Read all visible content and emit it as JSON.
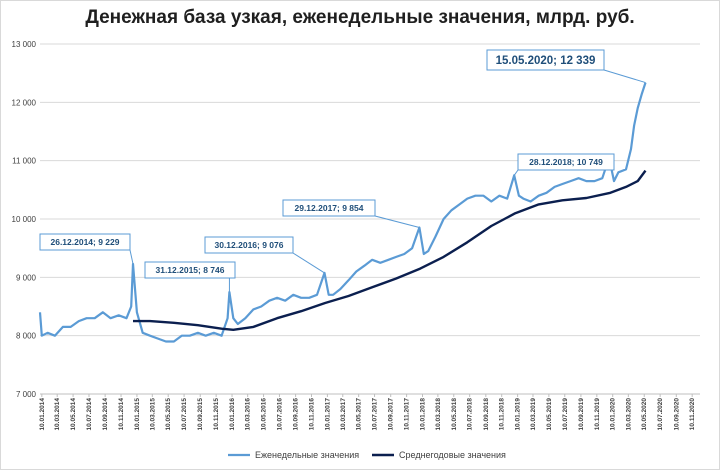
{
  "chart_data": {
    "type": "line",
    "title": "Денежная база узкая, еженедельные значения, млрд. руб.",
    "xlabel": "",
    "ylabel": "",
    "ylim": [
      7000,
      13000
    ],
    "y_ticks": [
      "7 000",
      "8 000",
      "9 000",
      "10 000",
      "11 000",
      "12 000",
      "13 000"
    ],
    "x_ticks": [
      "10.01.2014",
      "10.03.2014",
      "10.05.2014",
      "10.07.2014",
      "10.09.2014",
      "10.11.2014",
      "10.01.2015",
      "10.03.2015",
      "10.05.2015",
      "10.07.2015",
      "10.09.2015",
      "10.11.2015",
      "10.01.2016",
      "10.03.2016",
      "10.05.2016",
      "10.07.2016",
      "10.09.2016",
      "10.11.2016",
      "10.01.2017",
      "10.03.2017",
      "10.05.2017",
      "10.07.2017",
      "10.09.2017",
      "10.11.2017",
      "10.01.2018",
      "10.03.2018",
      "10.05.2018",
      "10.07.2018",
      "10.09.2018",
      "10.11.2018",
      "10.01.2019",
      "10.03.2019",
      "10.05.2019",
      "10.07.2019",
      "10.09.2019",
      "10.11.2019",
      "10.01.2020",
      "10.03.2020",
      "10.05.2020",
      "10.07.2020",
      "10.09.2020",
      "10.11.2020"
    ],
    "grid": true,
    "legend_position": "bottom",
    "series": [
      {
        "name": "Еженедельные значения",
        "color": "#5b9bd5",
        "x": [
          "2014-01-03",
          "2014-01-10",
          "2014-02-01",
          "2014-03-01",
          "2014-04-01",
          "2014-05-01",
          "2014-06-01",
          "2014-07-01",
          "2014-08-01",
          "2014-09-01",
          "2014-10-01",
          "2014-11-01",
          "2014-12-01",
          "2014-12-19",
          "2014-12-26",
          "2015-01-10",
          "2015-02-01",
          "2015-03-01",
          "2015-04-01",
          "2015-05-01",
          "2015-06-01",
          "2015-07-01",
          "2015-08-01",
          "2015-09-01",
          "2015-10-01",
          "2015-11-01",
          "2015-12-01",
          "2015-12-24",
          "2015-12-31",
          "2016-01-15",
          "2016-02-01",
          "2016-03-01",
          "2016-04-01",
          "2016-05-01",
          "2016-06-01",
          "2016-07-01",
          "2016-08-01",
          "2016-09-01",
          "2016-10-01",
          "2016-11-01",
          "2016-12-01",
          "2016-12-30",
          "2017-01-15",
          "2017-02-01",
          "2017-03-01",
          "2017-04-01",
          "2017-05-01",
          "2017-06-01",
          "2017-07-01",
          "2017-08-01",
          "2017-09-01",
          "2017-10-01",
          "2017-11-01",
          "2017-12-01",
          "2017-12-29",
          "2018-01-15",
          "2018-02-01",
          "2018-03-01",
          "2018-04-01",
          "2018-05-01",
          "2018-06-01",
          "2018-07-01",
          "2018-08-01",
          "2018-09-01",
          "2018-10-01",
          "2018-11-01",
          "2018-12-01",
          "2018-12-28",
          "2019-01-15",
          "2019-02-01",
          "2019-03-01",
          "2019-04-01",
          "2019-05-01",
          "2019-06-01",
          "2019-07-01",
          "2019-08-01",
          "2019-09-01",
          "2019-10-01",
          "2019-11-01",
          "2019-12-01",
          "2019-12-27",
          "2020-01-15",
          "2020-02-01",
          "2020-03-01",
          "2020-03-20",
          "2020-04-01",
          "2020-04-15",
          "2020-05-01",
          "2020-05-15"
        ],
        "y": [
          8400,
          8000,
          8050,
          8000,
          8150,
          8150,
          8250,
          8300,
          8300,
          8400,
          8300,
          8350,
          8300,
          8500,
          9229,
          8400,
          8050,
          8000,
          7950,
          7900,
          7900,
          8000,
          8000,
          8050,
          8000,
          8050,
          8000,
          8300,
          8746,
          8300,
          8200,
          8300,
          8450,
          8500,
          8600,
          8650,
          8600,
          8700,
          8650,
          8650,
          8700,
          9076,
          8700,
          8700,
          8800,
          8950,
          9100,
          9200,
          9300,
          9250,
          9300,
          9350,
          9400,
          9500,
          9854,
          9400,
          9450,
          9700,
          10000,
          10150,
          10250,
          10350,
          10400,
          10400,
          10300,
          10400,
          10350,
          10749,
          10400,
          10350,
          10300,
          10400,
          10450,
          10550,
          10600,
          10650,
          10700,
          10650,
          10650,
          10700,
          11050,
          10650,
          10800,
          10850,
          11200,
          11600,
          11900,
          12150,
          12339
        ]
      },
      {
        "name": "Среднегодовые значения",
        "color": "#0b1f4f",
        "x": [
          "2014-12-26",
          "2015-03-01",
          "2015-06-01",
          "2015-09-01",
          "2015-12-01",
          "2016-01-15",
          "2016-04-01",
          "2016-07-01",
          "2016-10-01",
          "2017-01-01",
          "2017-04-01",
          "2017-07-01",
          "2017-10-01",
          "2018-01-01",
          "2018-04-01",
          "2018-07-01",
          "2018-10-01",
          "2019-01-01",
          "2019-04-01",
          "2019-07-01",
          "2019-10-01",
          "2020-01-01",
          "2020-03-01",
          "2020-04-15",
          "2020-05-15"
        ],
        "y": [
          8250,
          8250,
          8220,
          8180,
          8120,
          8100,
          8150,
          8300,
          8420,
          8560,
          8680,
          8830,
          8980,
          9150,
          9350,
          9600,
          9880,
          10100,
          10250,
          10320,
          10360,
          10450,
          10550,
          10650,
          10830
        ]
      }
    ],
    "annotations": [
      {
        "label": "26.12.2014; 9 229",
        "x": "2014-12-26",
        "y": 9229
      },
      {
        "label": "31.12.2015; 8 746",
        "x": "2015-12-31",
        "y": 8746
      },
      {
        "label": "30.12.2016; 9 076",
        "x": "2016-12-30",
        "y": 9076
      },
      {
        "label": "29.12.2017; 9 854",
        "x": "2017-12-29",
        "y": 9854
      },
      {
        "label": "28.12.2018; 10 749",
        "x": "2018-12-28",
        "y": 10749
      },
      {
        "label": "15.05.2020; 12 339",
        "x": "2020-05-15",
        "y": 12339
      }
    ]
  }
}
